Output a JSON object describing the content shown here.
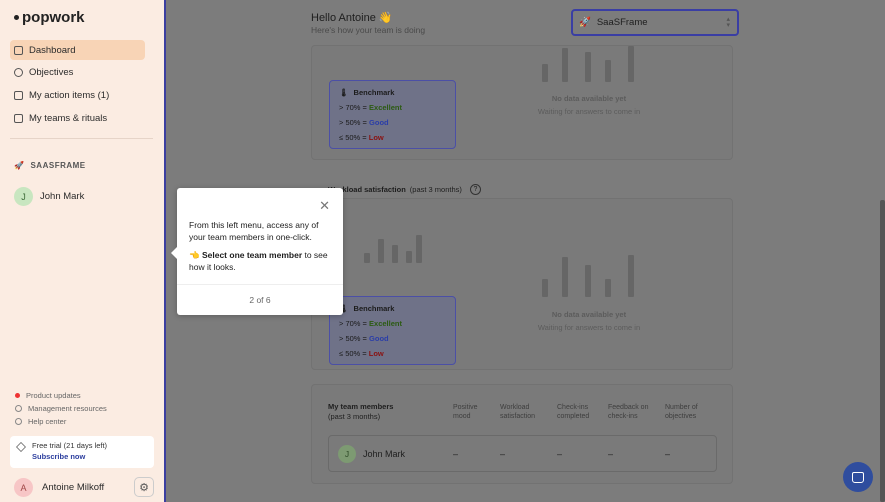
{
  "app": {
    "logo": "popwork"
  },
  "sidebar": {
    "nav": [
      {
        "label": "Dashboard",
        "icon": "dashboard-icon",
        "active": true
      },
      {
        "label": "Objectives",
        "icon": "target-icon"
      },
      {
        "label": "My action items (1)",
        "icon": "checkbox-icon"
      },
      {
        "label": "My teams & rituals",
        "icon": "calendar-icon"
      }
    ],
    "team_section": {
      "title": "SAASFRAME",
      "icon": "rocket-icon"
    },
    "members": [
      {
        "initial": "J",
        "name": "John Mark"
      }
    ],
    "footer_links": [
      {
        "label": "Product updates",
        "icon": "notification-dot-icon"
      },
      {
        "label": "Management resources",
        "icon": "graduation-cap-icon"
      },
      {
        "label": "Help center",
        "icon": "help-icon"
      }
    ],
    "trial": {
      "text": "Free trial (21 days left)",
      "cta": "Subscribe now"
    },
    "user": {
      "initial": "A",
      "name": "Antoine Milkoff"
    }
  },
  "header": {
    "greeting": "Hello Antoine 👋",
    "subtitle": "Here's how your team is doing",
    "team_select": {
      "value": "SaaSFrame",
      "icon": "rocket-icon"
    }
  },
  "benchmark": {
    "title": "Benchmark",
    "rows": [
      {
        "prefix": "> 70% = ",
        "level": "Excellent"
      },
      {
        "prefix": "> 50% = ",
        "level": "Good"
      },
      {
        "prefix": "≤ 50% = ",
        "level": "Low"
      }
    ]
  },
  "empty_state": {
    "title": "No data available yet",
    "subtitle": "Waiting for answers to come in"
  },
  "workload": {
    "title": "Workload satisfaction",
    "period": "(past 3 months)"
  },
  "team_table": {
    "title": "My team members",
    "period": "(past 3 months)",
    "columns": [
      "Positive mood",
      "Workload satisfaction",
      "Check-ins completed",
      "Feedback on check-ins",
      "Number of objectives"
    ],
    "rows": [
      {
        "initial": "J",
        "name": "John Mark",
        "values": [
          "–",
          "–",
          "–",
          "–",
          "–"
        ]
      }
    ]
  },
  "tooltip": {
    "text1": "From this left menu, access any of your team members in one-click.",
    "pointer": "👈",
    "bold": "Select one team member",
    "text2": " to see how it looks.",
    "step": "2 of 6"
  }
}
